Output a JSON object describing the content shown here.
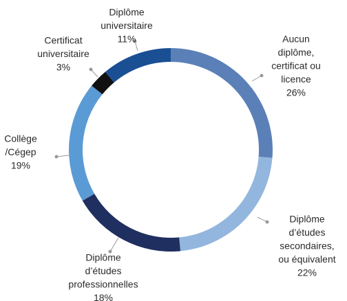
{
  "chart_data": {
    "type": "donut",
    "categories": [
      [
        "Aucun",
        "diplôme,",
        "certificat ou",
        "licence"
      ],
      [
        "Diplôme",
        "d’études",
        "secondaires,",
        "ou équivalent"
      ],
      [
        "Diplôme",
        "d’études",
        "professionnelles"
      ],
      [
        "Collège",
        "/Cégep"
      ],
      [
        "Certificat",
        "universitaire"
      ],
      [
        "Diplôme",
        "universitaire"
      ]
    ],
    "values": [
      26,
      22,
      18,
      19,
      3,
      11
    ],
    "value_labels": [
      "26%",
      "22%",
      "18%",
      "19%",
      "3%",
      "11%"
    ],
    "colors": [
      "#5b80b8",
      "#93b6de",
      "#1f2f5f",
      "#5b9bd5",
      "#111111",
      "#1a4f94"
    ]
  }
}
